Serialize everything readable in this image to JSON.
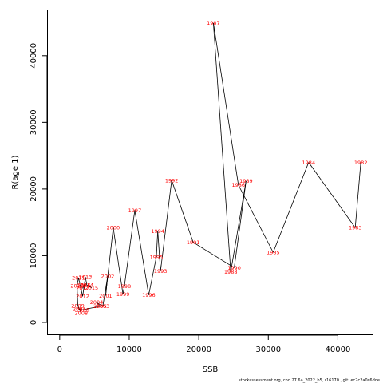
{
  "chart_data": {
    "type": "line",
    "title": "",
    "xlabel": "SSB",
    "ylabel": "R(age 1)",
    "xlim": [
      -1700,
      45000
    ],
    "ylim": [
      -1800,
      46800
    ],
    "xticks": [
      0,
      10000,
      20000,
      30000,
      40000
    ],
    "yticks": [
      0,
      10000,
      20000,
      30000,
      40000
    ],
    "grid": false,
    "label_color": "#ff0000",
    "line_color": "#000000",
    "points": [
      {
        "year": "1982",
        "ssb": 43300,
        "r": 24000
      },
      {
        "year": "1983",
        "ssb": 42500,
        "r": 14200
      },
      {
        "year": "1984",
        "ssb": 35800,
        "r": 24000
      },
      {
        "year": "1985",
        "ssb": 30700,
        "r": 10500
      },
      {
        "year": "1986",
        "ssb": 25700,
        "r": 20600
      },
      {
        "year": "1987",
        "ssb": 22100,
        "r": 44900
      },
      {
        "year": "1988",
        "ssb": 24600,
        "r": 7600
      },
      {
        "year": "1989",
        "ssb": 26800,
        "r": 21200
      },
      {
        "year": "1990",
        "ssb": 25100,
        "r": 8200
      },
      {
        "year": "1991",
        "ssb": 19200,
        "r": 12000
      },
      {
        "year": "1992",
        "ssb": 16100,
        "r": 21300
      },
      {
        "year": "1993",
        "ssb": 14500,
        "r": 7700
      },
      {
        "year": "1994",
        "ssb": 14100,
        "r": 13700
      },
      {
        "year": "1995",
        "ssb": 13900,
        "r": 9800
      },
      {
        "year": "1996",
        "ssb": 12800,
        "r": 4100
      },
      {
        "year": "1997",
        "ssb": 10800,
        "r": 16800
      },
      {
        "year": "1998",
        "ssb": 9300,
        "r": 5400
      },
      {
        "year": "1999",
        "ssb": 9100,
        "r": 4200
      },
      {
        "year": "2000",
        "ssb": 7700,
        "r": 14200
      },
      {
        "year": "2001",
        "ssb": 6600,
        "r": 4000
      },
      {
        "year": "2002",
        "ssb": 6900,
        "r": 6900
      },
      {
        "year": "2003",
        "ssb": 6200,
        "r": 2400
      },
      {
        "year": "2004",
        "ssb": 5300,
        "r": 3000
      },
      {
        "year": "2005",
        "ssb": 5800,
        "r": 2400
      },
      {
        "year": "2006",
        "ssb": 3300,
        "r": 1900
      },
      {
        "year": "2007",
        "ssb": 2800,
        "r": 2000
      },
      {
        "year": "2008",
        "ssb": 3100,
        "r": 1400
      },
      {
        "year": "2009",
        "ssb": 2600,
        "r": 2500
      },
      {
        "year": "2010",
        "ssb": 2500,
        "r": 5500
      },
      {
        "year": "2011",
        "ssb": 2700,
        "r": 6700
      },
      {
        "year": "2012",
        "ssb": 3300,
        "r": 3900
      },
      {
        "year": "2013",
        "ssb": 3700,
        "r": 6800
      },
      {
        "year": "2014",
        "ssb": 3900,
        "r": 5600
      },
      {
        "year": "2015",
        "ssb": 4600,
        "r": 5200
      },
      {
        "year": "2016",
        "ssb": 3500,
        "r": 5600
      },
      {
        "year": "2017",
        "ssb": 3300,
        "r": 5100
      }
    ]
  },
  "footer": "stockassessment.org, cod.27.6a_2022_b5, r16170 , git: ec2c2a0c6dde"
}
